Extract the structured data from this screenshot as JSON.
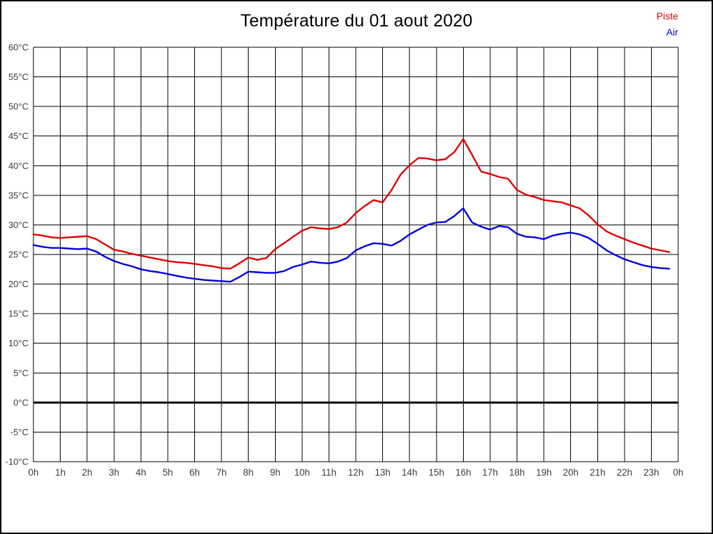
{
  "page": {
    "background": "#ffffff",
    "frame_color": "#000000"
  },
  "header": {
    "title": "Température du 01 aout 2020"
  },
  "legend": {
    "items": [
      {
        "label": "Piste",
        "color": "#dd0000"
      },
      {
        "label": "Air",
        "color": "#0000dd"
      }
    ]
  },
  "chart_data": {
    "type": "line",
    "title": "Température du 01 aout 2020",
    "xlabel": "",
    "ylabel": "",
    "grid": true,
    "legend_position": "top-right",
    "x_unit": "hour",
    "xlim_hours": [
      0,
      24
    ],
    "x_tick_labels": [
      "0h",
      "1h",
      "2h",
      "3h",
      "4h",
      "5h",
      "6h",
      "7h",
      "8h",
      "9h",
      "10h",
      "11h",
      "12h",
      "13h",
      "14h",
      "15h",
      "16h",
      "17h",
      "18h",
      "19h",
      "20h",
      "21h",
      "22h",
      "23h",
      "0h"
    ],
    "ylim": [
      -10,
      60
    ],
    "y_tick_step": 5,
    "y_tick_suffix": "°C",
    "zero_line": {
      "value": 0,
      "color": "#000000",
      "width": 3
    },
    "sample_interval_minutes": 20,
    "series": [
      {
        "name": "Piste",
        "color": "#dd0000",
        "start_hour": 0,
        "values": [
          28.4,
          28.2,
          27.9,
          27.8,
          27.9,
          28.0,
          28.1,
          27.6,
          26.7,
          25.8,
          25.5,
          25.1,
          24.8,
          24.5,
          24.2,
          23.9,
          23.7,
          23.6,
          23.4,
          23.2,
          23.0,
          22.7,
          22.6,
          23.5,
          24.5,
          24.1,
          24.4,
          25.9,
          26.9,
          28.0,
          29.0,
          29.6,
          29.4,
          29.3,
          29.6,
          30.4,
          32.0,
          33.2,
          34.2,
          33.8,
          35.9,
          38.5,
          40.1,
          41.3,
          41.2,
          40.9,
          41.1,
          42.3,
          44.5,
          41.8,
          39.0,
          38.6,
          38.1,
          37.8,
          35.9,
          35.1,
          34.7,
          34.2,
          34.0,
          33.8,
          33.3,
          32.8,
          31.6,
          30.1,
          28.9,
          28.2,
          27.6,
          27.0,
          26.5,
          26.0,
          25.7,
          25.4
        ]
      },
      {
        "name": "Air",
        "color": "#0000dd",
        "start_hour": 0,
        "values": [
          26.6,
          26.3,
          26.1,
          26.1,
          26.0,
          25.9,
          26.0,
          25.5,
          24.6,
          23.9,
          23.4,
          23.0,
          22.5,
          22.2,
          22.0,
          21.7,
          21.4,
          21.1,
          20.9,
          20.7,
          20.6,
          20.5,
          20.4,
          21.2,
          22.1,
          22.0,
          21.9,
          21.9,
          22.2,
          22.9,
          23.3,
          23.8,
          23.6,
          23.5,
          23.8,
          24.4,
          25.7,
          26.4,
          26.9,
          26.8,
          26.5,
          27.3,
          28.4,
          29.2,
          30.0,
          30.4,
          30.5,
          31.5,
          32.8,
          30.4,
          29.7,
          29.2,
          29.8,
          29.6,
          28.5,
          28.0,
          27.9,
          27.6,
          28.2,
          28.5,
          28.7,
          28.4,
          27.8,
          26.8,
          25.7,
          24.9,
          24.2,
          23.7,
          23.2,
          22.9,
          22.7,
          22.6
        ]
      }
    ]
  }
}
